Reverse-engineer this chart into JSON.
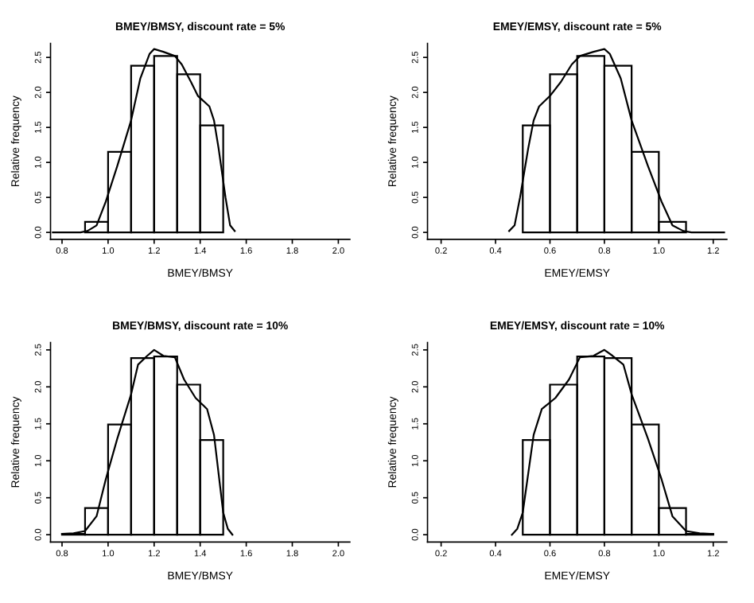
{
  "chart_data": [
    {
      "type": "histogram",
      "title": "BMEY/BMSY, discount rate = 5%",
      "xlabel": "BMEY/BMSY",
      "ylabel": "Relative frequency",
      "bins": [
        0.9,
        1.0,
        1.1,
        1.2,
        1.3,
        1.4,
        1.5
      ],
      "values": [
        0.15,
        1.15,
        2.38,
        2.52,
        2.26,
        1.53
      ],
      "color": "#000000",
      "series": [
        {
          "type": "line",
          "color": "#000000",
          "x": [
            0.76,
            0.88,
            0.91,
            0.95,
            0.99,
            1.04,
            1.1,
            1.14,
            1.18,
            1.2,
            1.24,
            1.29,
            1.32,
            1.36,
            1.39,
            1.44,
            1.46,
            1.48,
            1.51,
            1.53,
            1.55
          ],
          "values": [
            0,
            0,
            0.02,
            0.1,
            0.44,
            0.95,
            1.6,
            2.2,
            2.55,
            2.62,
            2.58,
            2.52,
            2.4,
            2.15,
            1.95,
            1.8,
            1.6,
            1.2,
            0.5,
            0.1,
            0.02
          ]
        }
      ],
      "xlim": [
        0.75,
        2.05
      ],
      "ylim": [
        -0.1,
        2.7
      ],
      "xticks": [
        {
          "value": 0.8,
          "label": "0.8"
        },
        {
          "value": 1.0,
          "label": "1.0"
        },
        {
          "value": 1.2,
          "label": "1.2"
        },
        {
          "value": 1.4,
          "label": "1.4"
        },
        {
          "value": 1.6,
          "label": "1.6"
        },
        {
          "value": 1.8,
          "label": "1.8"
        },
        {
          "value": 2.0,
          "label": "2.0"
        }
      ],
      "yticks": [
        {
          "value": 0,
          "label": "0.0"
        },
        {
          "value": 0.5,
          "label": "0.5"
        },
        {
          "value": 1.0,
          "label": "1.0"
        },
        {
          "value": 1.5,
          "label": "1.5"
        },
        {
          "value": 2.0,
          "label": "2.0"
        },
        {
          "value": 2.5,
          "label": "2.5"
        }
      ]
    },
    {
      "type": "histogram",
      "title": "EMEY/EMSY, discount rate = 5%",
      "xlabel": "EMEY/EMSY",
      "ylabel": "Relative frequency",
      "bins": [
        0.5,
        0.6,
        0.7,
        0.8,
        0.9,
        1.0,
        1.1
      ],
      "values": [
        1.53,
        2.26,
        2.52,
        2.38,
        1.15,
        0.15
      ],
      "color": "#000000",
      "series": [
        {
          "type": "line",
          "color": "#000000",
          "x": [
            0.45,
            0.47,
            0.49,
            0.52,
            0.54,
            0.56,
            0.6,
            0.64,
            0.68,
            0.71,
            0.76,
            0.8,
            0.82,
            0.86,
            0.9,
            0.96,
            1.01,
            1.05,
            1.09,
            1.12,
            1.24
          ],
          "values": [
            0.02,
            0.1,
            0.5,
            1.2,
            1.6,
            1.8,
            1.95,
            2.15,
            2.4,
            2.52,
            2.58,
            2.62,
            2.55,
            2.2,
            1.6,
            0.95,
            0.44,
            0.1,
            0.02,
            0,
            0
          ]
        }
      ],
      "xlim": [
        0.15,
        1.25
      ],
      "ylim": [
        -0.1,
        2.7
      ],
      "xticks": [
        {
          "value": 0.2,
          "label": "0.2"
        },
        {
          "value": 0.4,
          "label": "0.4"
        },
        {
          "value": 0.6,
          "label": "0.6"
        },
        {
          "value": 0.8,
          "label": "0.8"
        },
        {
          "value": 1.0,
          "label": "1.0"
        },
        {
          "value": 1.2,
          "label": "1.2"
        }
      ],
      "yticks": [
        {
          "value": 0,
          "label": "0.0"
        },
        {
          "value": 0.5,
          "label": "0.5"
        },
        {
          "value": 1.0,
          "label": "1.0"
        },
        {
          "value": 1.5,
          "label": "1.5"
        },
        {
          "value": 2.0,
          "label": "2.0"
        },
        {
          "value": 2.5,
          "label": "2.5"
        }
      ]
    },
    {
      "type": "histogram",
      "title": "BMEY/BMSY, discount rate = 10%",
      "xlabel": "BMEY/BMSY",
      "ylabel": "Relative frequency",
      "bins": [
        0.8,
        0.9,
        1.0,
        1.1,
        1.2,
        1.3,
        1.4,
        1.5
      ],
      "values": [
        0.01,
        0.36,
        1.49,
        2.39,
        2.41,
        2.03,
        1.28
      ],
      "color": "#000000",
      "series": [
        {
          "type": "line",
          "color": "#000000",
          "x": [
            0.8,
            0.85,
            0.9,
            0.95,
            0.99,
            1.04,
            1.1,
            1.13,
            1.17,
            1.2,
            1.24,
            1.29,
            1.33,
            1.38,
            1.43,
            1.46,
            1.5,
            1.52,
            1.54
          ],
          "values": [
            0.01,
            0.02,
            0.05,
            0.25,
            0.75,
            1.3,
            1.9,
            2.3,
            2.42,
            2.5,
            2.42,
            2.4,
            2.1,
            1.85,
            1.7,
            1.35,
            0.3,
            0.08,
            0
          ]
        }
      ],
      "xlim": [
        0.75,
        2.05
      ],
      "ylim": [
        -0.1,
        2.6
      ],
      "xticks": [
        {
          "value": 0.8,
          "label": "0.8"
        },
        {
          "value": 1.0,
          "label": "1.0"
        },
        {
          "value": 1.2,
          "label": "1.2"
        },
        {
          "value": 1.4,
          "label": "1.4"
        },
        {
          "value": 1.6,
          "label": "1.6"
        },
        {
          "value": 1.8,
          "label": "1.8"
        },
        {
          "value": 2.0,
          "label": "2.0"
        }
      ],
      "yticks": [
        {
          "value": 0,
          "label": "0.0"
        },
        {
          "value": 0.5,
          "label": "0.5"
        },
        {
          "value": 1.0,
          "label": "1.0"
        },
        {
          "value": 1.5,
          "label": "1.5"
        },
        {
          "value": 2.0,
          "label": "2.0"
        },
        {
          "value": 2.5,
          "label": "2.5"
        }
      ]
    },
    {
      "type": "histogram",
      "title": "EMEY/EMSY, discount rate = 10%",
      "xlabel": "EMEY/EMSY",
      "ylabel": "Relative frequency",
      "bins": [
        0.5,
        0.6,
        0.7,
        0.8,
        0.9,
        1.0,
        1.1,
        1.2
      ],
      "values": [
        1.28,
        2.03,
        2.41,
        2.39,
        1.49,
        0.36,
        0.01
      ],
      "color": "#000000",
      "series": [
        {
          "type": "line",
          "color": "#000000",
          "x": [
            0.46,
            0.48,
            0.5,
            0.54,
            0.57,
            0.62,
            0.67,
            0.71,
            0.76,
            0.8,
            0.83,
            0.87,
            0.9,
            0.96,
            1.01,
            1.05,
            1.1,
            1.15,
            1.2
          ],
          "values": [
            0,
            0.08,
            0.3,
            1.35,
            1.7,
            1.85,
            2.1,
            2.4,
            2.42,
            2.5,
            2.42,
            2.3,
            1.9,
            1.3,
            0.75,
            0.25,
            0.05,
            0.02,
            0.01
          ]
        }
      ],
      "xlim": [
        0.15,
        1.25
      ],
      "ylim": [
        -0.1,
        2.6
      ],
      "xticks": [
        {
          "value": 0.2,
          "label": "0.2"
        },
        {
          "value": 0.4,
          "label": "0.4"
        },
        {
          "value": 0.6,
          "label": "0.6"
        },
        {
          "value": 0.8,
          "label": "0.8"
        },
        {
          "value": 1.0,
          "label": "1.0"
        },
        {
          "value": 1.2,
          "label": "1.2"
        }
      ],
      "yticks": [
        {
          "value": 0,
          "label": "0.0"
        },
        {
          "value": 0.5,
          "label": "0.5"
        },
        {
          "value": 1.0,
          "label": "1.0"
        },
        {
          "value": 1.5,
          "label": "1.5"
        },
        {
          "value": 2.0,
          "label": "2.0"
        },
        {
          "value": 2.5,
          "label": "2.5"
        }
      ]
    }
  ]
}
